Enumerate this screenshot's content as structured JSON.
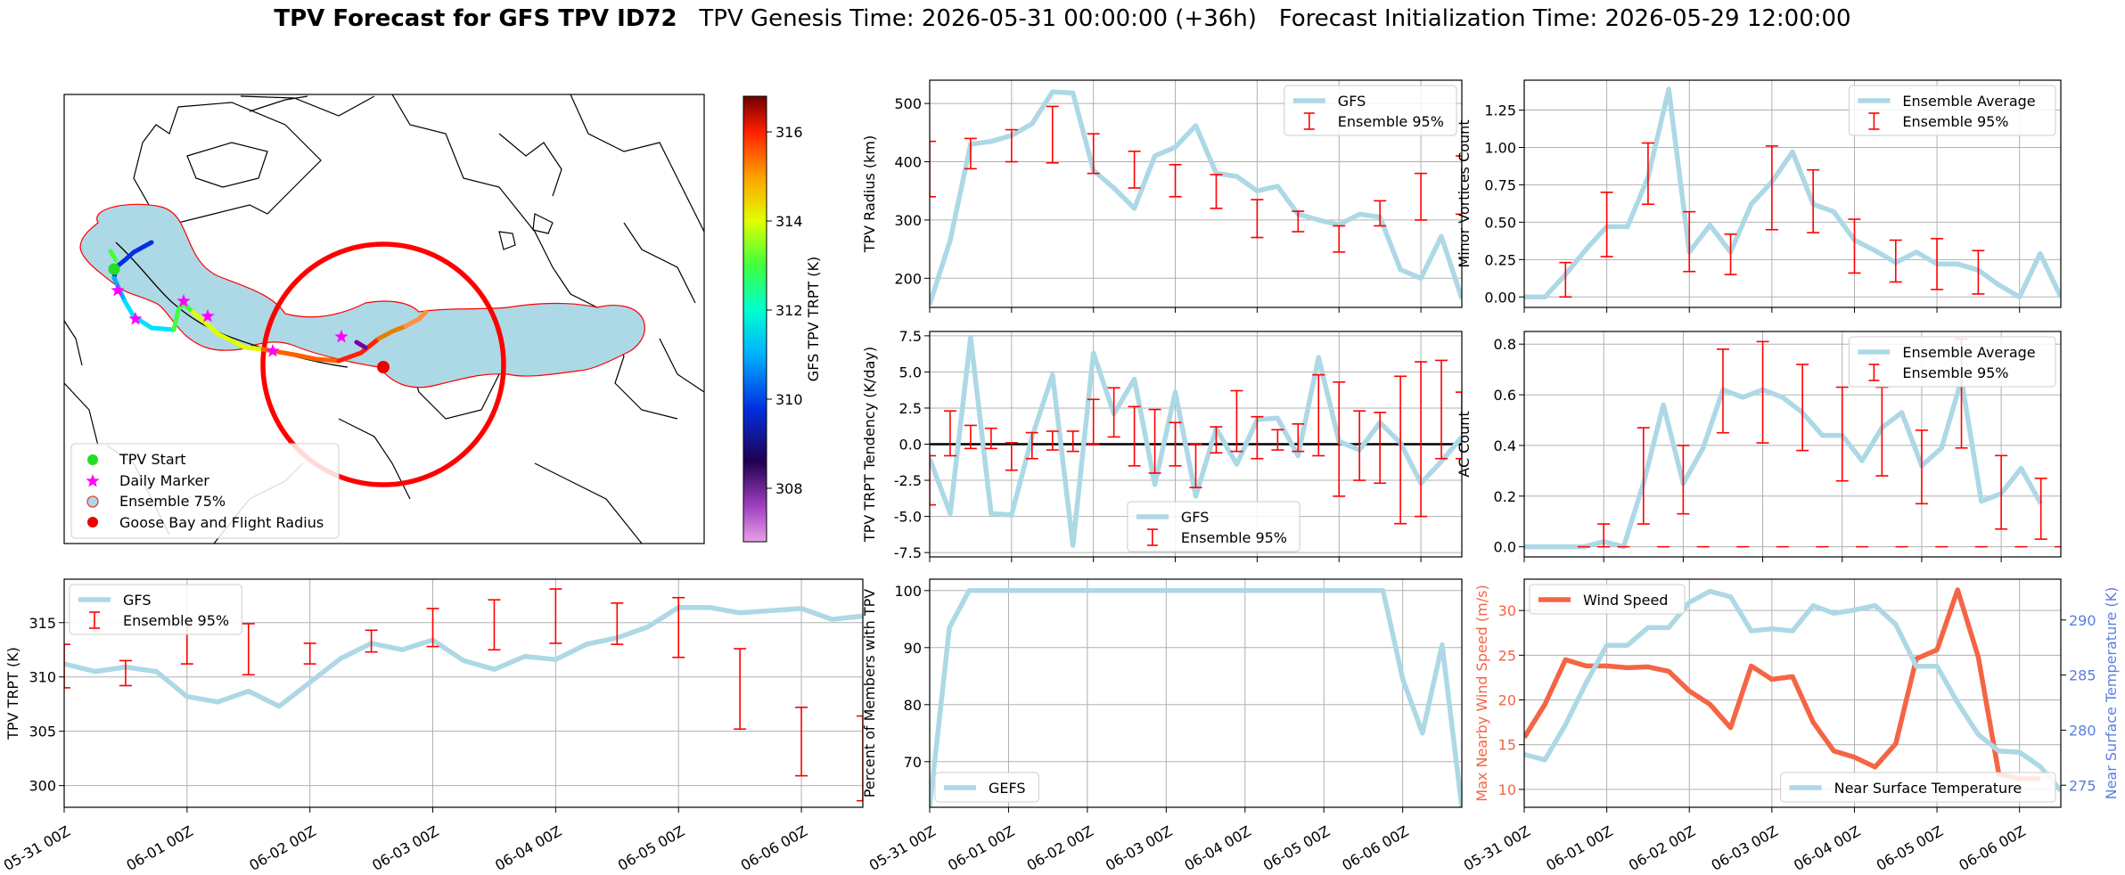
{
  "page": {
    "title_bold": "TPV Forecast for GFS TPV ID72",
    "title_rest": "   TPV Genesis Time: 2026-05-31 00:00:00 (+36h)   Forecast Initialization Time: 2026-05-29 12:00:00"
  },
  "colors": {
    "gfs": "#add8e6",
    "ensemble": "#ff0000",
    "wind": "#f46545",
    "temp": "#5b7ee0",
    "grid": "#b0b0b0",
    "ocean": "#add8e6"
  },
  "time_axis": {
    "tick_labels": [
      "05-31 00Z",
      "06-01 00Z",
      "06-02 00Z",
      "06-03 00Z",
      "06-04 00Z",
      "06-05 00Z",
      "06-06 00Z"
    ]
  },
  "map": {
    "colorbar_label": "GFS TPV TRPT (K)",
    "colorbar_ticks": [
      "316",
      "314",
      "312",
      "310",
      "308"
    ],
    "colorbar_range": [
      306.8,
      316.8
    ],
    "legend": [
      {
        "label": "TPV Start",
        "symbol": "green-dot-icon"
      },
      {
        "label": "Daily Marker",
        "symbol": "magenta-star-icon"
      },
      {
        "label": "Ensemble 75%",
        "symbol": "lightblue-circle-icon"
      },
      {
        "label": "Goose Bay and Flight Radius",
        "symbol": "red-dot-icon"
      }
    ]
  },
  "chart_data": [
    {
      "id": "radius",
      "type": "line",
      "ylabel": "TPV Radius (km)",
      "ylim": [
        150,
        540
      ],
      "yticks": [
        200,
        300,
        400,
        500
      ],
      "legend_position": "top-right",
      "series": [
        {
          "name": "GFS",
          "values": [
            155,
            265,
            430,
            435,
            445,
            465,
            520,
            518,
            385,
            355,
            320,
            410,
            425,
            462,
            380,
            375,
            350,
            358,
            310,
            300,
            292,
            310,
            305,
            215,
            200,
            272,
            165
          ]
        },
        {
          "name": "Ensemble 95%",
          "kind": "errorbar",
          "x": [
            0,
            2,
            4,
            6,
            8,
            10,
            12,
            14,
            16,
            18,
            20,
            22,
            24,
            26
          ],
          "low": [
            340,
            388,
            400,
            398,
            380,
            355,
            340,
            320,
            270,
            280,
            245,
            290,
            300,
            310
          ],
          "high": [
            435,
            440,
            455,
            495,
            448,
            418,
            395,
            378,
            335,
            315,
            290,
            333,
            380,
            410
          ]
        }
      ]
    },
    {
      "id": "tendency",
      "type": "line",
      "ylabel": "TPV TRPT Tendency (K/day)",
      "ylim": [
        -7.8,
        7.8
      ],
      "yticks": [
        "-7.5",
        "-5.0",
        "-2.5",
        "0.0",
        "2.5",
        "5.0",
        "7.5"
      ],
      "ytick_values": [
        -7.5,
        -5.0,
        -2.5,
        0.0,
        2.5,
        5.0,
        7.5
      ],
      "legend_position": "bottom-center",
      "series": [
        {
          "name": "GFS",
          "values": [
            -1.0,
            -4.8,
            7.4,
            -4.8,
            -4.9,
            0.5,
            4.8,
            -7.0,
            6.3,
            2.1,
            4.5,
            -2.8,
            3.6,
            -3.6,
            1.1,
            -1.4,
            1.7,
            1.8,
            -0.8,
            6.0,
            0.2,
            -0.4,
            1.5,
            0.1,
            -2.7,
            -1.2,
            0.5
          ]
        },
        {
          "name": "Ensemble 95%",
          "kind": "errorbar",
          "x": [
            0,
            1,
            2,
            3,
            4,
            5,
            6,
            7,
            8,
            9,
            10,
            11,
            12,
            13,
            14,
            15,
            16,
            17,
            18,
            19,
            20,
            21,
            22,
            23,
            24,
            25,
            26
          ],
          "low": [
            -4.2,
            -0.8,
            -0.3,
            -0.3,
            -1.8,
            -1.0,
            -0.4,
            -0.5,
            0.0,
            0.5,
            -1.5,
            -2.0,
            -1.5,
            -3.0,
            -0.6,
            -0.5,
            -1.0,
            -0.4,
            -0.5,
            -0.8,
            -3.6,
            -2.5,
            -2.7,
            -5.5,
            -5.0,
            -1.0,
            -1.0
          ],
          "high": [
            -0.8,
            2.3,
            1.3,
            1.1,
            0.1,
            0.8,
            0.9,
            0.9,
            3.1,
            3.9,
            2.6,
            2.4,
            1.5,
            0.0,
            1.2,
            3.7,
            1.9,
            1.0,
            1.4,
            4.8,
            4.3,
            2.3,
            2.2,
            4.7,
            5.7,
            5.8,
            3.6
          ]
        }
      ]
    },
    {
      "id": "minor_vortices",
      "type": "line",
      "ylabel": "Minor Vortices Count",
      "ylim": [
        -0.07,
        1.45
      ],
      "yticks": [
        "0.00",
        "0.25",
        "0.50",
        "0.75",
        "1.00",
        "1.25"
      ],
      "ytick_values": [
        0,
        0.25,
        0.5,
        0.75,
        1.0,
        1.25
      ],
      "legend_position": "top-right",
      "series": [
        {
          "name": "Ensemble Average",
          "values": [
            0.0,
            0.0,
            0.15,
            0.32,
            0.47,
            0.47,
            0.8,
            1.39,
            0.3,
            0.48,
            0.3,
            0.62,
            0.77,
            0.97,
            0.62,
            0.57,
            0.38,
            0.31,
            0.23,
            0.3,
            0.22,
            0.22,
            0.18,
            0.08,
            0.0,
            0.29,
            0.0
          ]
        },
        {
          "name": "Ensemble 95%",
          "kind": "errorbar",
          "x": [
            2,
            4,
            6,
            8,
            10,
            12,
            14,
            16,
            18,
            20,
            22
          ],
          "low": [
            0.0,
            0.27,
            0.62,
            0.17,
            0.15,
            0.45,
            0.43,
            0.16,
            0.1,
            0.05,
            0.02
          ],
          "high": [
            0.23,
            0.7,
            1.03,
            0.57,
            0.42,
            1.01,
            0.85,
            0.52,
            0.38,
            0.39,
            0.31
          ]
        }
      ]
    },
    {
      "id": "ac_count",
      "type": "line",
      "ylabel": "AC Count",
      "ylim": [
        -0.04,
        0.85
      ],
      "yticks": [
        "0.0",
        "0.2",
        "0.4",
        "0.6",
        "0.8"
      ],
      "ytick_values": [
        0,
        0.2,
        0.4,
        0.6,
        0.8
      ],
      "legend_position": "top-right",
      "series": [
        {
          "name": "Ensemble Average",
          "values": [
            0.0,
            0.0,
            0.0,
            0.0,
            0.02,
            0.0,
            0.25,
            0.56,
            0.25,
            0.39,
            0.62,
            0.59,
            0.62,
            0.59,
            0.53,
            0.44,
            0.44,
            0.34,
            0.47,
            0.53,
            0.32,
            0.39,
            0.66,
            0.18,
            0.21,
            0.31,
            0.17
          ]
        },
        {
          "name": "Ensemble 95%",
          "kind": "errorbar",
          "x": [
            3,
            4,
            5,
            6,
            7,
            8,
            9,
            10,
            11,
            12,
            13,
            14,
            15,
            16,
            17,
            18,
            19,
            20,
            21,
            22,
            23,
            24,
            25,
            26,
            27
          ],
          "low": [
            0.0,
            0.0,
            0.0,
            0.09,
            0.0,
            0.13,
            0.0,
            0.45,
            0.0,
            0.41,
            0.0,
            0.38,
            0.0,
            0.26,
            0.0,
            0.28,
            0.0,
            0.17,
            0.0,
            0.39,
            0.0,
            0.07,
            0.0,
            0.03,
            0.0
          ],
          "high": [
            0.0,
            0.09,
            0.0,
            0.47,
            0.0,
            0.4,
            0.0,
            0.78,
            0.0,
            0.81,
            0.0,
            0.72,
            0.0,
            0.63,
            0.0,
            0.63,
            0.0,
            0.46,
            0.0,
            0.82,
            0.0,
            0.36,
            0.0,
            0.27,
            0.0
          ]
        }
      ]
    },
    {
      "id": "trpt",
      "type": "line",
      "ylabel": "TPV TRPT (K)",
      "ylim": [
        298,
        319
      ],
      "yticks": [
        300,
        305,
        310,
        315
      ],
      "legend_position": "top-left",
      "series": [
        {
          "name": "GFS",
          "values": [
            311.2,
            310.5,
            310.9,
            310.5,
            308.2,
            307.7,
            308.7,
            307.3,
            309.5,
            311.7,
            313.1,
            312.5,
            313.4,
            311.5,
            310.7,
            311.9,
            311.6,
            313.0,
            313.6,
            314.6,
            316.4,
            316.4,
            315.9,
            316.1,
            316.3,
            315.3,
            315.6
          ]
        },
        {
          "name": "Ensemble 95%",
          "kind": "errorbar",
          "x": [
            0,
            2,
            4,
            6,
            8,
            10,
            12,
            14,
            16,
            18,
            20,
            22,
            24,
            26
          ],
          "low": [
            309,
            309.2,
            311.2,
            310.2,
            311.2,
            312.3,
            312.8,
            312.5,
            313.1,
            313.0,
            311.8,
            305.2,
            300.9,
            298.6
          ],
          "high": [
            313,
            311.5,
            315.2,
            314.9,
            313.1,
            314.3,
            316.3,
            317.1,
            318.1,
            316.8,
            317.3,
            312.6,
            307.2,
            306.4
          ]
        }
      ]
    },
    {
      "id": "percent_members",
      "type": "line",
      "ylabel": "Percent of Members with TPV",
      "ylim": [
        62,
        102
      ],
      "yticks": [
        70,
        80,
        90,
        100
      ],
      "legend_position": "bottom-left",
      "series": [
        {
          "name": "GEFS",
          "values": [
            62,
            93.5,
            100,
            100,
            100,
            100,
            100,
            100,
            100,
            100,
            100,
            100,
            100,
            100,
            100,
            100,
            100,
            100,
            100,
            100,
            100,
            100,
            100,
            100,
            84.5,
            75,
            90.5,
            62
          ]
        }
      ]
    },
    {
      "id": "wind_temp",
      "type": "line",
      "ylabel": "Max Nearby Wind Speed (m/s)",
      "ylabel_right": "Near Surface Temperature (K)",
      "ylim": [
        8,
        33.5
      ],
      "yticks": [
        10,
        15,
        20,
        25,
        30
      ],
      "ylim_right": [
        273,
        293.7
      ],
      "yticks_right": [
        275,
        280,
        285,
        290
      ],
      "series": [
        {
          "name": "Wind Speed",
          "axis": "left",
          "values": [
            15.8,
            19.5,
            24.5,
            23.8,
            23.8,
            23.6,
            23.7,
            23.2,
            21.0,
            19.5,
            16.9,
            23.8,
            22.3,
            22.6,
            17.5,
            14.3,
            13.6,
            12.5,
            15.1,
            24.6,
            25.6,
            32.3,
            24.8,
            11.7,
            11.2,
            11.2
          ]
        },
        {
          "name": "Near Surface Temperature",
          "axis": "right",
          "values": [
            277.8,
            277.3,
            280.5,
            284.3,
            287.7,
            287.7,
            289.3,
            289.3,
            291.6,
            292.6,
            292.1,
            289.0,
            289.2,
            289.0,
            291.3,
            290.6,
            290.9,
            291.3,
            289.6,
            285.8,
            285.8,
            282.5,
            279.6,
            278.1,
            278.0,
            276.7,
            274.5
          ]
        }
      ]
    }
  ]
}
